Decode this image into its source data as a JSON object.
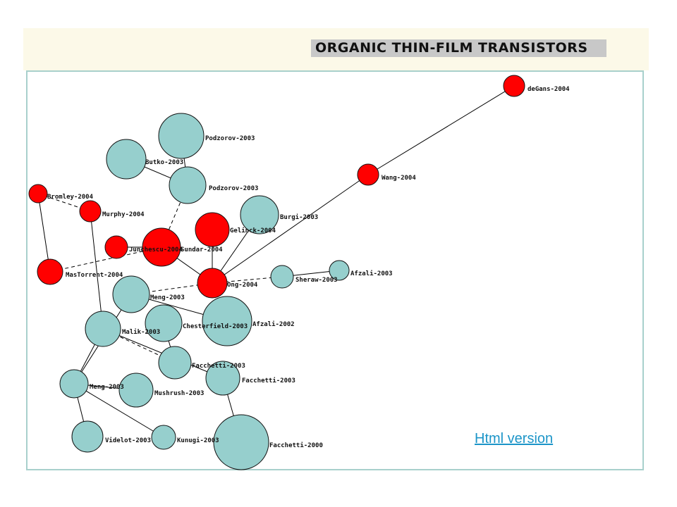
{
  "title": "ORGANIC THIN-FILM TRANSISTORS",
  "link_text": "Html version",
  "colors": {
    "red": "#ff0000",
    "teal": "#96cfcd",
    "header_bg": "#fcf9e8",
    "frame": "#a8d0cc",
    "link": "#1c95c8"
  },
  "nodes": [
    {
      "id": "degans2004",
      "label": "deGans-2004",
      "color": "red",
      "size": "small"
    },
    {
      "id": "wang2004",
      "label": "Wang-2004",
      "color": "red",
      "size": "small"
    },
    {
      "id": "podzorov2003a",
      "label": "Podzorov-2003",
      "color": "teal",
      "size": "large"
    },
    {
      "id": "butko2003",
      "label": "Butko-2003",
      "color": "teal",
      "size": "large"
    },
    {
      "id": "podzorov2003b",
      "label": "Podzorov-2003",
      "color": "teal",
      "size": "medium"
    },
    {
      "id": "bromley2004",
      "label": "Bromley-2004",
      "color": "red",
      "size": "small"
    },
    {
      "id": "murphy2004",
      "label": "Murphy-2004",
      "color": "red",
      "size": "small"
    },
    {
      "id": "burgi2003",
      "label": "Burgi-2003",
      "color": "teal",
      "size": "large"
    },
    {
      "id": "gelinck2004",
      "label": "Gelinck-2004",
      "color": "red",
      "size": "medium"
    },
    {
      "id": "junchescu2004",
      "label": "Junchescu-2004",
      "color": "red",
      "size": "small"
    },
    {
      "id": "sundar2004",
      "label": "Sundar-2004",
      "color": "red",
      "size": "large"
    },
    {
      "id": "afzali2003",
      "label": "Afzali-2003",
      "color": "teal",
      "size": "small"
    },
    {
      "id": "mastorrent2004",
      "label": "MasTorrent-2004",
      "color": "red",
      "size": "medium"
    },
    {
      "id": "sheraw2003",
      "label": "Sheraw-2003",
      "color": "teal",
      "size": "small"
    },
    {
      "id": "ong2004",
      "label": "Ong-2004",
      "color": "red",
      "size": "medium"
    },
    {
      "id": "meng2003a",
      "label": "Meng-2003",
      "color": "teal",
      "size": "medium"
    },
    {
      "id": "afzali2002",
      "label": "Afzali-2002",
      "color": "teal",
      "size": "xlarge"
    },
    {
      "id": "chesterfield2003",
      "label": "Chesterfield-2003",
      "color": "teal",
      "size": "medium"
    },
    {
      "id": "malik2003",
      "label": "Malik-2003",
      "color": "teal",
      "size": "medium"
    },
    {
      "id": "facchetti2003a",
      "label": "Facchetti-2003",
      "color": "teal",
      "size": "medium"
    },
    {
      "id": "facchetti2003b",
      "label": "Facchetti-2003",
      "color": "teal",
      "size": "medium"
    },
    {
      "id": "meng2003b",
      "label": "Meng-2003",
      "color": "teal",
      "size": "small"
    },
    {
      "id": "mushrush2003",
      "label": "Mushrush-2003",
      "color": "teal",
      "size": "medium"
    },
    {
      "id": "videlot2003",
      "label": "Videlot-2003",
      "color": "teal",
      "size": "medium"
    },
    {
      "id": "kunugi2003",
      "label": "Kunugi-2003",
      "color": "teal",
      "size": "small"
    },
    {
      "id": "facchetti2000",
      "label": "Facchetti-2000",
      "color": "teal",
      "size": "xlarge"
    }
  ],
  "edges": [
    {
      "from": "degans2004",
      "to": "wang2004",
      "style": "solid"
    },
    {
      "from": "wang2004",
      "to": "ong2004",
      "style": "solid"
    },
    {
      "from": "podzorov2003a",
      "to": "podzorov2003b",
      "style": "solid"
    },
    {
      "from": "butko2003",
      "to": "podzorov2003b",
      "style": "solid"
    },
    {
      "from": "podzorov2003b",
      "to": "sundar2004",
      "style": "dashed"
    },
    {
      "from": "bromley2004",
      "to": "murphy2004",
      "style": "dashed"
    },
    {
      "from": "bromley2004",
      "to": "mastorrent2004",
      "style": "solid"
    },
    {
      "from": "murphy2004",
      "to": "malik2003",
      "style": "solid"
    },
    {
      "from": "junchescu2004",
      "to": "sundar2004",
      "style": "solid"
    },
    {
      "from": "sundar2004",
      "to": "ong2004",
      "style": "solid"
    },
    {
      "from": "sundar2004",
      "to": "mastorrent2004",
      "style": "dashed"
    },
    {
      "from": "gelinck2004",
      "to": "ong2004",
      "style": "solid"
    },
    {
      "from": "burgi2003",
      "to": "ong2004",
      "style": "solid"
    },
    {
      "from": "ong2004",
      "to": "sheraw2003",
      "style": "dashed"
    },
    {
      "from": "ong2004",
      "to": "meng2003a",
      "style": "dashed"
    },
    {
      "from": "sheraw2003",
      "to": "afzali2003",
      "style": "solid"
    },
    {
      "from": "meng2003a",
      "to": "afzali2002",
      "style": "solid"
    },
    {
      "from": "meng2003a",
      "to": "meng2003b",
      "style": "solid"
    },
    {
      "from": "chesterfield2003",
      "to": "facchetti2003a",
      "style": "solid"
    },
    {
      "from": "malik2003",
      "to": "meng2003b",
      "style": "solid"
    },
    {
      "from": "malik2003",
      "to": "facchetti2003a",
      "style": "dashed"
    },
    {
      "from": "malik2003",
      "to": "facchetti2003b",
      "style": "solid"
    },
    {
      "from": "facchetti2003b",
      "to": "facchetti2000",
      "style": "solid"
    },
    {
      "from": "meng2003b",
      "to": "mushrush2003",
      "style": "solid"
    },
    {
      "from": "meng2003b",
      "to": "videlot2003",
      "style": "solid"
    },
    {
      "from": "meng2003b",
      "to": "kunugi2003",
      "style": "solid"
    }
  ]
}
